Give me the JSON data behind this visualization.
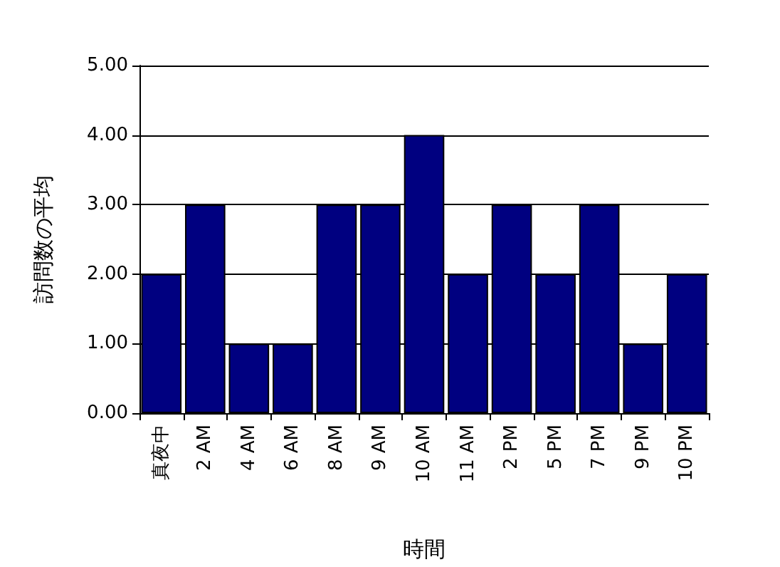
{
  "chart_data": {
    "type": "bar",
    "xlabel": "時間",
    "ylabel": "訪問数の平均",
    "categories": [
      "真夜中",
      "2 AM",
      "4 AM",
      "6 AM",
      "8 AM",
      "9 AM",
      "10 AM",
      "11 AM",
      "2 PM",
      "5 PM",
      "7 PM",
      "9 PM",
      "10 PM"
    ],
    "values": [
      2,
      3,
      1,
      1,
      3,
      3,
      4,
      2,
      3,
      2,
      3,
      1,
      2
    ],
    "color": "#000080",
    "ylim": [
      0,
      5
    ],
    "yticks": [
      {
        "value": 0,
        "label": "0.00"
      },
      {
        "value": 1,
        "label": "1.00"
      },
      {
        "value": 2,
        "label": "2.00"
      },
      {
        "value": 3,
        "label": "3.00"
      },
      {
        "value": 4,
        "label": "4.00"
      },
      {
        "value": 5,
        "label": "5.00"
      }
    ],
    "grid": "y"
  }
}
